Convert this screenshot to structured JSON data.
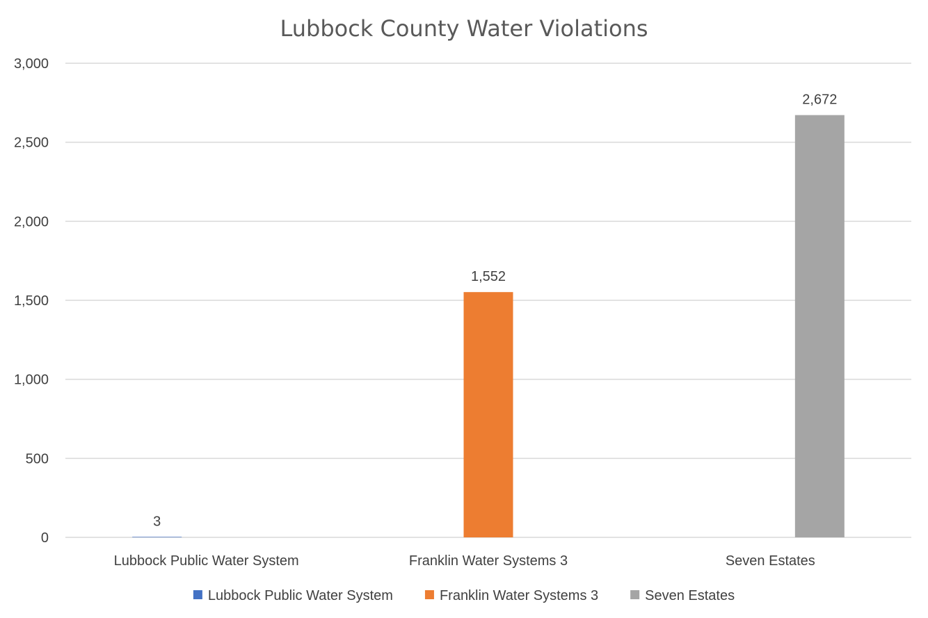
{
  "chart_data": {
    "type": "bar",
    "title": "Lubbock County Water Violations",
    "categories": [
      "Lubbock Public Water System",
      "Franklin Water Systems 3",
      "Seven Estates"
    ],
    "series": [
      {
        "name": "Lubbock Public Water System",
        "color": "#4472c4",
        "values": [
          3,
          null,
          null
        ]
      },
      {
        "name": "Franklin Water Systems 3",
        "color": "#ed7d31",
        "values": [
          null,
          1552,
          null
        ]
      },
      {
        "name": "Seven Estates",
        "color": "#a5a5a5",
        "values": [
          null,
          null,
          2672
        ]
      }
    ],
    "data_labels": [
      "3",
      "1,552",
      "2,672"
    ],
    "yticks": [
      "0",
      "500",
      "1,000",
      "1,500",
      "2,000",
      "2,500",
      "3,000"
    ],
    "ylim": [
      0,
      3000
    ],
    "grid": true,
    "legend_position": "bottom"
  }
}
